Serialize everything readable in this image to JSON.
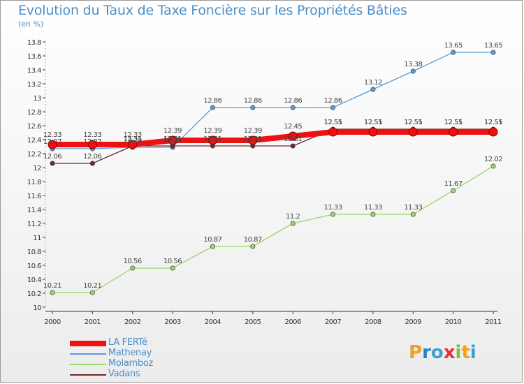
{
  "header": {
    "title": "Evolution du Taux de Taxe Foncière sur les Propriétés Bâties",
    "unit": "(en %)"
  },
  "logo": {
    "text": "Proxiti",
    "colors": [
      "#f0a020",
      "#2f7fc0",
      "#3aa0d0",
      "#e83030",
      "#7fbf30",
      "#f0a020",
      "#3aa0d0"
    ]
  },
  "chart_data": {
    "type": "line",
    "title": "Evolution du Taux de Taxe Foncière sur les Propriétés Bâties",
    "ylabel": "(en %)",
    "xlabel": "",
    "x": [
      "2000",
      "2001",
      "2002",
      "2003",
      "2004",
      "2005",
      "2006",
      "2007",
      "2008",
      "2009",
      "2010",
      "2011"
    ],
    "ylim": [
      10,
      13.8
    ],
    "yticks": [
      "10",
      "10.2",
      "10.4",
      "10.6",
      "10.8",
      "11",
      "11.2",
      "11.4",
      "11.6",
      "11.8",
      "12",
      "12.2",
      "12.4",
      "12.6",
      "12.8",
      "13",
      "13.2",
      "13.4",
      "13.6",
      "13.8"
    ],
    "grid": false,
    "legend_position": "bottom-left",
    "series": [
      {
        "name": "Mathenay",
        "color": "#5a9ad6",
        "values": [
          12.27,
          12.27,
          12.29,
          12.29,
          12.86,
          12.86,
          12.86,
          12.86,
          13.12,
          13.38,
          13.65,
          13.65
        ],
        "labels": [
          "12.27",
          "12.27",
          "12.29",
          "12.29",
          "12.86",
          "12.86",
          "12.86",
          "12.86",
          "13.12",
          "13.38",
          "13.65",
          "13.65"
        ]
      },
      {
        "name": "Molamboz",
        "color": "#99d36a",
        "values": [
          10.21,
          10.21,
          10.56,
          10.56,
          10.87,
          10.87,
          11.2,
          11.33,
          11.33,
          11.33,
          11.67,
          12.02
        ],
        "labels": [
          "10.21",
          "10.21",
          "10.56",
          "10.56",
          "10.87",
          "10.87",
          "11.2",
          "11.33",
          "11.33",
          "11.33",
          "11.67",
          "12.02"
        ]
      },
      {
        "name": "Vadans",
        "color": "#6b2a2a",
        "values": [
          12.06,
          12.06,
          12.31,
          12.31,
          12.31,
          12.31,
          12.31,
          12.55,
          12.55,
          12.55,
          12.55,
          12.55
        ],
        "labels": [
          "12.06",
          "12.06",
          "12.31",
          "12.31",
          "12.31",
          "12.31",
          "12.31",
          "12.55",
          "12.55",
          "12.55",
          "12.55",
          "12.55"
        ]
      },
      {
        "name": "LA FERTé",
        "color": "#ee1111",
        "values": [
          12.33,
          12.33,
          12.33,
          12.39,
          12.39,
          12.39,
          12.45,
          12.51,
          12.51,
          12.51,
          12.51,
          12.51
        ],
        "labels": [
          "12.33",
          "12.33",
          "12.33",
          "12.39",
          "12.39",
          "12.39",
          "12.45",
          "12.51",
          "12.51",
          "12.51",
          "12.51",
          "12.51"
        ]
      }
    ],
    "legend_order": [
      "LA FERTé",
      "Mathenay",
      "Molamboz",
      "Vadans"
    ]
  }
}
